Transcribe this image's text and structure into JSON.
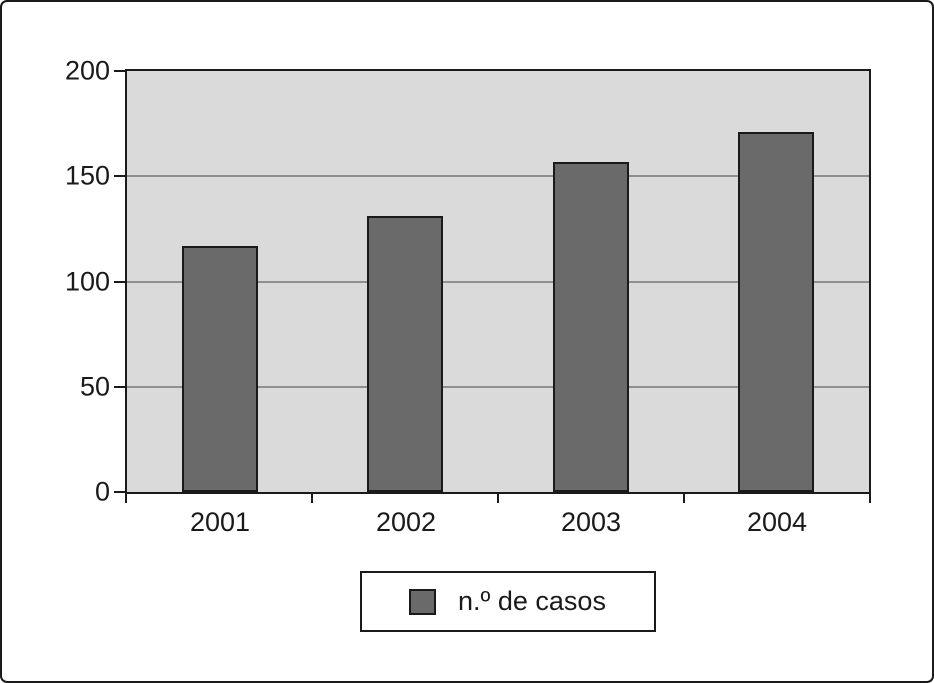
{
  "chart_data": {
    "type": "bar",
    "title": "",
    "categories": [
      "2001",
      "2002",
      "2003",
      "2004"
    ],
    "values": [
      116,
      130,
      156,
      170
    ],
    "series": [
      {
        "name": "n.º de casos",
        "values": [
          116,
          130,
          156,
          170
        ]
      }
    ],
    "xlabel": "",
    "ylabel": "",
    "ylim": [
      0,
      200
    ],
    "yticks": [
      0,
      50,
      100,
      150,
      200
    ],
    "grid": true,
    "legend_position": "bottom",
    "legend": {
      "label": "n.º de casos"
    }
  },
  "colors": {
    "background": "#ffffff",
    "outer_border": "#1a1a1a",
    "plot_bg": "#dadada",
    "grid_line": "#8f8f8f",
    "axis_line": "#1a1a1a",
    "bar_fill": "#6a6a6a",
    "bar_border": "#1a1a1a",
    "text": "#1a1a1a"
  }
}
